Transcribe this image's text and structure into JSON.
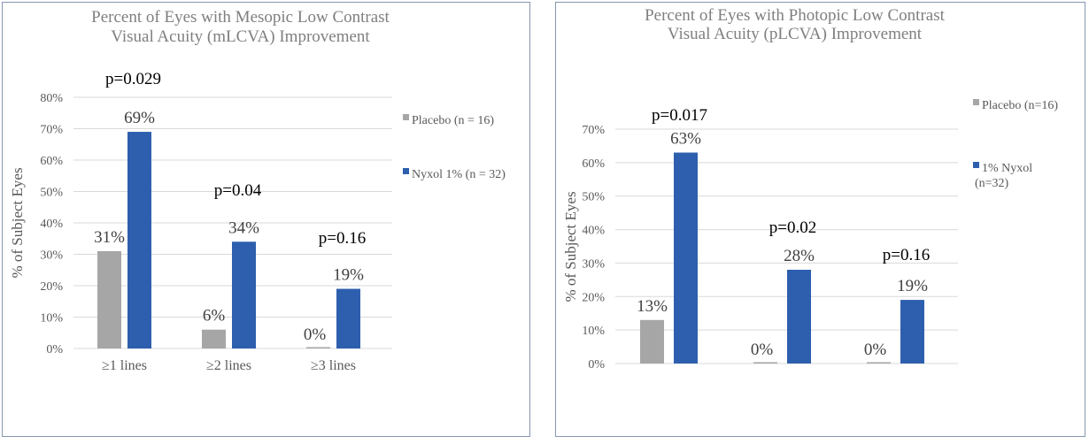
{
  "chart_data": [
    {
      "type": "bar",
      "title": [
        "Percent of Eyes with Mesopic Low Contrast",
        "Visual Acuity (mLCVA)  Improvement"
      ],
      "ylabel": "% of Subject Eyes",
      "categories": [
        "≥1 lines",
        "≥2 lines",
        "≥3 lines"
      ],
      "series": [
        {
          "name": "Placebo (n = 16)",
          "color": "#a6a6a6",
          "values": [
            31,
            6,
            0
          ],
          "labels": [
            "31%",
            "6%",
            "0%"
          ]
        },
        {
          "name": "Nyxol 1% (n = 32)",
          "color": "#2e5fae",
          "values": [
            69,
            34,
            19
          ],
          "labels": [
            "69%",
            "34%",
            "19%"
          ]
        }
      ],
      "p_values": [
        "p=0.029",
        "p=0.04",
        "p=0.16"
      ],
      "ylim": [
        0,
        80
      ],
      "yticks": [
        "0%",
        "10%",
        "20%",
        "30%",
        "40%",
        "50%",
        "60%",
        "70%",
        "80%"
      ],
      "grid": true,
      "legend_position": "right"
    },
    {
      "type": "bar",
      "title": [
        "Percent of Eyes with Photopic Low Contrast",
        "Visual Acuity (pLCVA) Improvement"
      ],
      "ylabel": "% of Subject Eyes",
      "categories": [
        "",
        "",
        ""
      ],
      "series": [
        {
          "name": "Placebo (n=16)",
          "color": "#a6a6a6",
          "values": [
            13,
            0,
            0
          ],
          "labels": [
            "13%",
            "0%",
            "0%"
          ]
        },
        {
          "name": "1% Nyxol (n=32)",
          "name_lines": [
            "1% Nyxol",
            "(n=32)"
          ],
          "color": "#2e5fae",
          "values": [
            63,
            28,
            19
          ],
          "labels": [
            "63%",
            "28%",
            "19%"
          ]
        }
      ],
      "p_values": [
        "p=0.017",
        "p=0.02",
        "p=0.16"
      ],
      "ylim": [
        0,
        70
      ],
      "yticks": [
        "0%",
        "10%",
        "20%",
        "30%",
        "40%",
        "50%",
        "60%",
        "70%"
      ],
      "grid": true,
      "legend_position": "right"
    }
  ]
}
